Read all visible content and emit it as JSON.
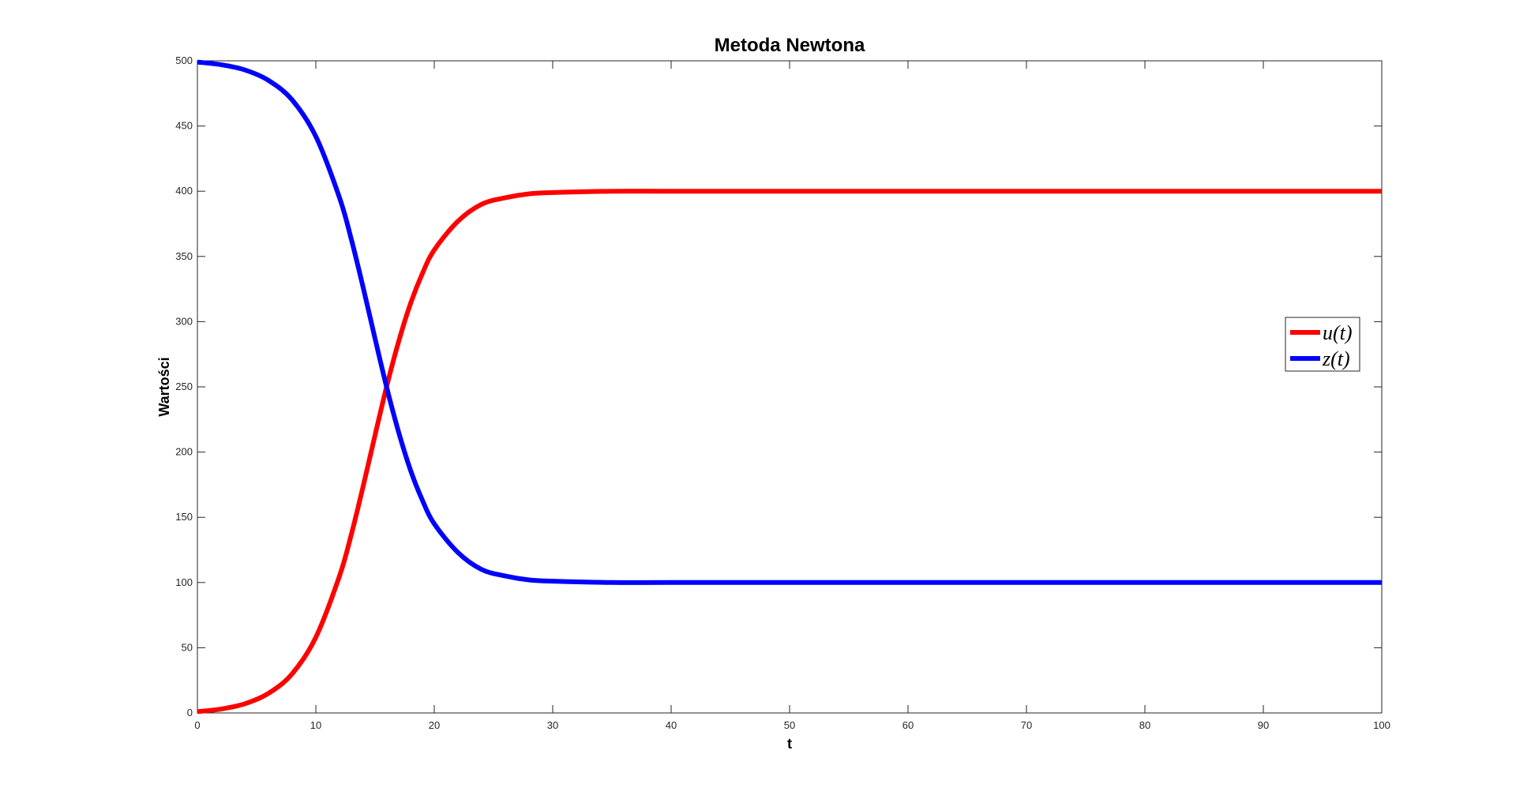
{
  "chart_data": {
    "type": "line",
    "title": "Metoda Newtona",
    "xlabel": "t",
    "ylabel": "Wartości",
    "xlim": [
      0,
      100
    ],
    "ylim": [
      0,
      500
    ],
    "x_ticks": [
      "0",
      "10",
      "20",
      "30",
      "40",
      "50",
      "60",
      "70",
      "80",
      "90",
      "100"
    ],
    "y_ticks": [
      "0",
      "50",
      "100",
      "150",
      "200",
      "250",
      "300",
      "350",
      "400",
      "450",
      "500"
    ],
    "grid": false,
    "legend_position": "right",
    "x": [
      0,
      2,
      4,
      6,
      8,
      10,
      12,
      13,
      14,
      15,
      16,
      17,
      18,
      19,
      20,
      22,
      24,
      26,
      28,
      30,
      35,
      40,
      50,
      60,
      70,
      80,
      90,
      100
    ],
    "series": [
      {
        "name": "u(t)",
        "color": "#ff0000",
        "values": [
          1,
          3,
          7,
          15,
          30,
          58,
          105,
          137,
          174,
          213,
          251,
          285,
          314,
          337,
          355,
          377,
          390,
          395,
          398,
          399,
          400,
          400,
          400,
          400,
          400,
          400,
          400,
          400
        ]
      },
      {
        "name": "z(t)",
        "color": "#0000ff",
        "values": [
          499,
          497,
          493,
          485,
          470,
          442,
          395,
          363,
          326,
          287,
          249,
          215,
          186,
          163,
          145,
          123,
          110,
          105,
          102,
          101,
          100,
          100,
          100,
          100,
          100,
          100,
          100,
          100
        ]
      }
    ]
  }
}
